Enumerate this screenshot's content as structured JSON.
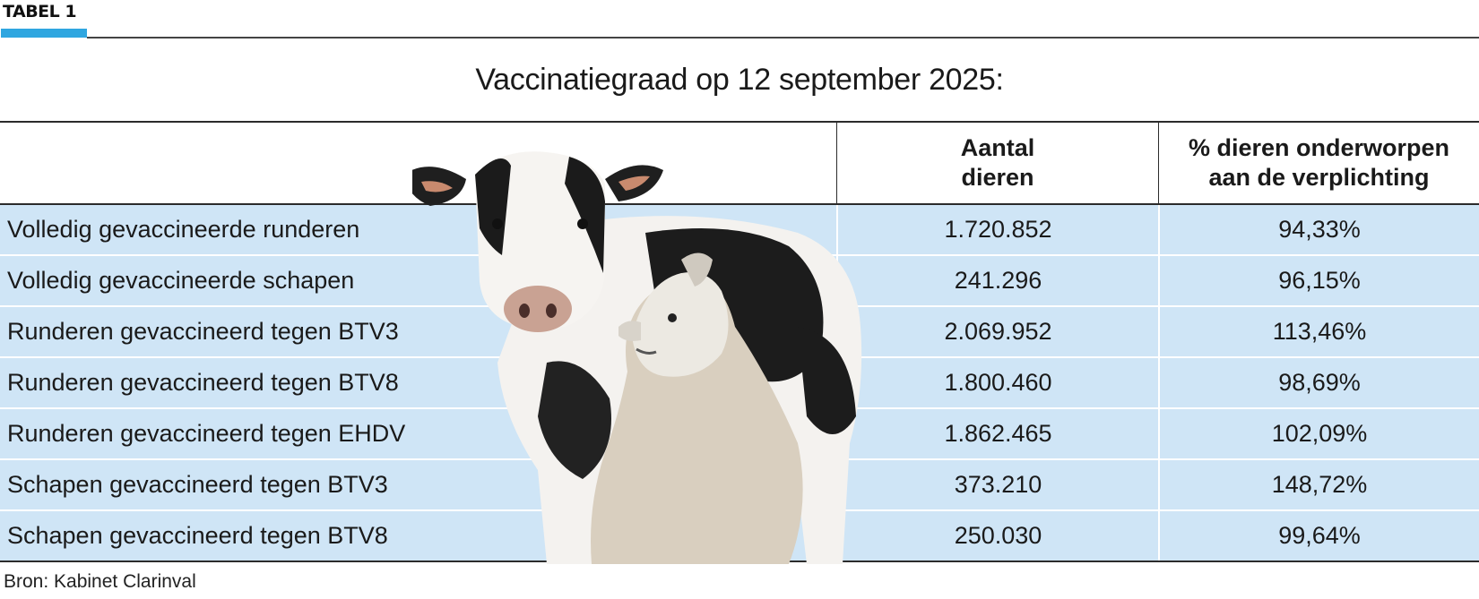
{
  "tag": "TABEL 1",
  "title": "Vaccinatiegraad op 12 september 2025:",
  "headers": [
    "",
    "Aantal\ndieren",
    "% dieren onderworpen\naan de verplichting"
  ],
  "rows": [
    {
      "label": "Volledig gevaccineerde runderen",
      "count": "1.720.852",
      "pct": "94,33%"
    },
    {
      "label": "Volledig gevaccineerde schapen",
      "count": "241.296",
      "pct": "96,15%"
    },
    {
      "label": "Runderen gevaccineerd tegen BTV3",
      "count": "2.069.952",
      "pct": "113,46%"
    },
    {
      "label": "Runderen gevaccineerd tegen BTV8",
      "count": "1.800.460",
      "pct": "98,69%"
    },
    {
      "label": "Runderen gevaccineerd tegen EHDV",
      "count": "1.862.465",
      "pct": "102,09%"
    },
    {
      "label": "Schapen gevaccineerd tegen BTV3",
      "count": "373.210",
      "pct": "148,72%"
    },
    {
      "label": "Schapen gevaccineerd tegen BTV8",
      "count": "250.030",
      "pct": "99,64%"
    }
  ],
  "source": "Bron: Kabinet Clarinval",
  "colors": {
    "accent": "#2fa6e0",
    "row_bg": "#cfe5f6",
    "rule": "#2b2b2b"
  },
  "illustration": "cow-and-sheep-photo"
}
